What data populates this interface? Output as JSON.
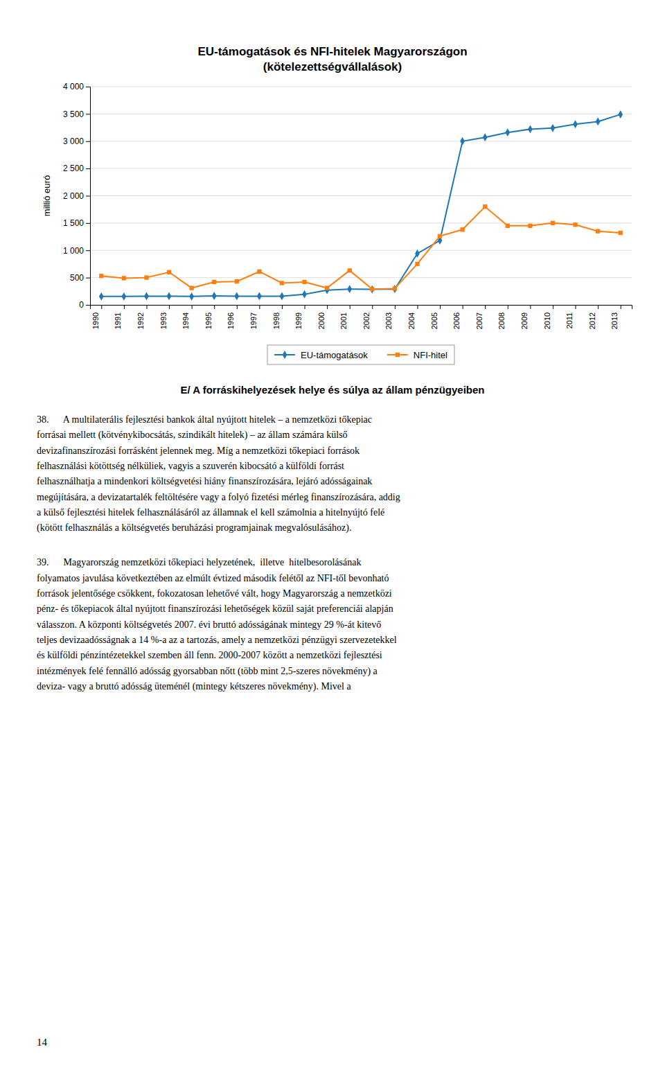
{
  "chart_data": {
    "type": "line",
    "title": "EU-támogatások és NFI-hitelek Magyarországon",
    "subtitle": "(kötelezettségvállalások)",
    "y_label": "millió euró",
    "x": [
      1990,
      1991,
      1992,
      1993,
      1994,
      1995,
      1996,
      1997,
      1998,
      1999,
      2000,
      2001,
      2002,
      2003,
      2004,
      2005,
      2006,
      2007,
      2008,
      2009,
      2010,
      2011,
      2012,
      2013
    ],
    "series": [
      {
        "name": "EU-támogatások",
        "marker": "diamond",
        "values": [
          155,
          155,
          160,
          160,
          155,
          165,
          160,
          160,
          160,
          195,
          270,
          290,
          285,
          290,
          940,
          1180,
          3000,
          3070,
          3160,
          3220,
          3240,
          3310,
          3360,
          3490
        ]
      },
      {
        "name": "NFI-hitel",
        "marker": "square",
        "values": [
          530,
          490,
          500,
          600,
          310,
          420,
          430,
          610,
          400,
          420,
          310,
          630,
          290,
          300,
          750,
          1260,
          1380,
          1800,
          1450,
          1450,
          1500,
          1470,
          1350,
          1320
        ]
      }
    ],
    "xlim": [
      1989.5,
      2013.5
    ],
    "xticks": [
      1990,
      1991,
      1992,
      1993,
      1994,
      1995,
      1996,
      1997,
      1998,
      1999,
      2000,
      2001,
      2002,
      2003,
      2004,
      2005,
      2006,
      2007,
      2008,
      2009,
      2010,
      2011,
      2012,
      2013
    ],
    "ylim": [
      0,
      4000
    ],
    "yticks": [
      0,
      500,
      {
        "value": 1000,
        "label": "1 000"
      },
      {
        "value": 1500,
        "label": "1 500"
      },
      {
        "value": 2000,
        "label": "2 000"
      },
      {
        "value": 2500,
        "label": "2 500"
      },
      {
        "value": 3000,
        "label": "3 000"
      },
      {
        "value": 3500,
        "label": "3 500"
      },
      {
        "value": 4000,
        "label": "4 000"
      }
    ],
    "grid": true,
    "legend": "bottom"
  },
  "page": {
    "heading": "E/ A forráskihelyezések helye és súlya az állam pénzügyeiben",
    "paragraphs": [
      [
        "38.      A multilaterális fejlesztési bankok által nyújtott hitelek – a nemzetközi tőkepiac",
        "forrásai mellett (kötvénykibocsátás, szindikált hitelek) – az állam számára külső",
        "devizafinanszírozási forrásként jelennek meg. Míg a nemzetközi tőkepiaci források",
        "felhasználási kötöttség nélküliek, vagyis a szuverén kibocsátó a külföldi forrást",
        "felhasználhatja a mindenkori költségvetési hiány finanszírozására, lejáró adósságainak",
        "megújítására, a devizatartalék feltöltésére vagy a folyó fizetési mérleg finanszírozására, addig",
        "a külső fejlesztési hitelek felhasználásáról az államnak el kell számolnia a hitelnyújtó felé",
        "(kötött felhasználás a költségvetés beruházási programjainak megvalósulásához)."
      ],
      [
        "39.      Magyarország nemzetközi tőkepiaci helyzetének,  illetve  hitelbesorolásának",
        "folyamatos javulása következtében az elmúlt évtized második felétől az NFI-től bevonható",
        "források jelentősége csökkent, fokozatosan lehetővé vált, hogy Magyarország a nemzetközi",
        "pénz- és tőkepiacok által nyújtott finanszírozási lehetőségek közül saját preferenciái alapján",
        "válasszon. A központi költségvetés 2007. évi bruttó adósságának mintegy 29 %-át kitevő",
        "teljes devizaadósságnak a 14 %-a az a tartozás, amely a nemzetközi pénzügyi szervezetekkel",
        "és külföldi pénzintézetekkel szemben áll fenn. 2000-2007 között a nemzetközi fejlesztési",
        "intézmények felé fennálló adósság gyorsabban nőtt (több mint 2,5-szeres növekmény) a",
        "deviza- vagy a bruttó adósság üteménél (mintegy kétszeres növekmény). Mivel a"
      ]
    ],
    "page_number": "14"
  }
}
